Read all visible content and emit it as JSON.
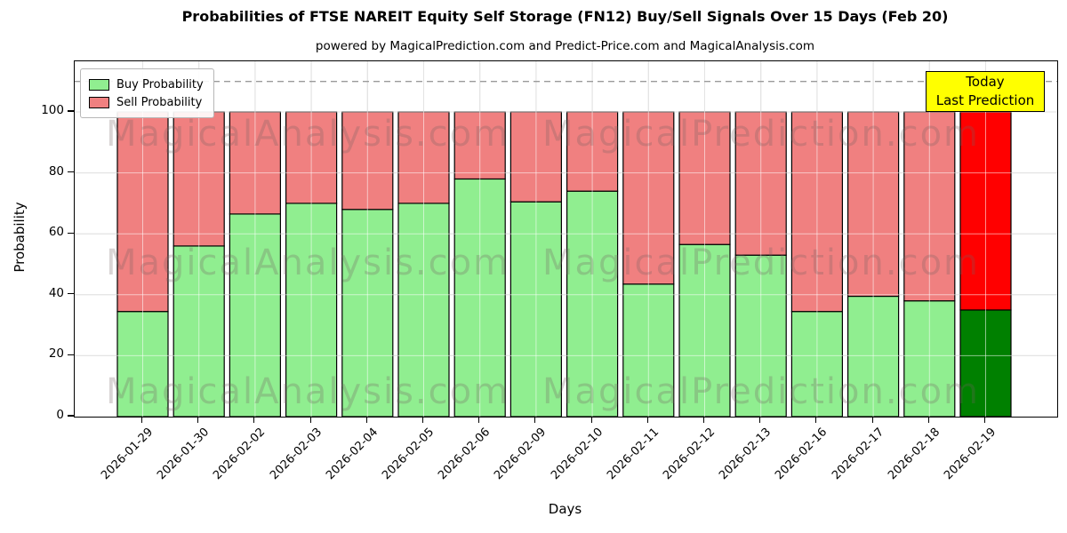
{
  "header": {
    "title": "Probabilities of FTSE NAREIT Equity Self Storage (FN12) Buy/Sell Signals Over 15 Days (Feb 20)",
    "subtitle": "powered by MagicalPrediction.com and Predict-Price.com and MagicalAnalysis.com"
  },
  "legend": {
    "items": [
      {
        "label": "Buy Probability",
        "color": "#90EE90"
      },
      {
        "label": "Sell Probability",
        "color": "#F08080"
      }
    ]
  },
  "annotation": {
    "lines": [
      "Today",
      "Last Prediction"
    ],
    "bg_color": "#FFFF00"
  },
  "watermarks": {
    "left_text": "MagicalAnalysis.com",
    "right_text": "MagicalPrediction.com"
  },
  "axes": {
    "x_label": "Days",
    "y_label": "Probability",
    "y_ticks": [
      0,
      20,
      40,
      60,
      80,
      100
    ]
  },
  "chart_data": {
    "type": "bar",
    "stacked": true,
    "title": "Probabilities of FTSE NAREIT Equity Self Storage (FN12) Buy/Sell Signals Over 15 Days (Feb 20)",
    "xlabel": "Days",
    "ylabel": "Probability",
    "ylim": [
      0,
      116.6
    ],
    "grid": true,
    "legend_position": "upper left",
    "dashed_reference_line_y": 110,
    "categories": [
      "2026-01-29",
      "2026-01-30",
      "2026-02-02",
      "2026-02-03",
      "2026-02-04",
      "2026-02-05",
      "2026-02-06",
      "2026-02-09",
      "2026-02-10",
      "2026-02-11",
      "2026-02-12",
      "2026-02-13",
      "2026-02-16",
      "2026-02-17",
      "2026-02-18",
      "2026-02-19"
    ],
    "series": [
      {
        "name": "Buy Probability",
        "values": [
          34.5,
          56,
          66.5,
          70,
          68,
          70,
          78,
          70.5,
          74,
          43.5,
          56.5,
          53,
          34.5,
          39.5,
          38,
          35
        ],
        "color": "#90EE90",
        "last_bar_color": "#008000"
      },
      {
        "name": "Sell Probability",
        "values": [
          65.5,
          44,
          33.5,
          30,
          32,
          30,
          22,
          29.5,
          26,
          56.5,
          43.5,
          47,
          65.5,
          60.5,
          62,
          65
        ],
        "color": "#F08080",
        "last_bar_color": "#FF0000"
      }
    ],
    "bar_edge_color": "#000000",
    "highlight_last_bar": true
  }
}
